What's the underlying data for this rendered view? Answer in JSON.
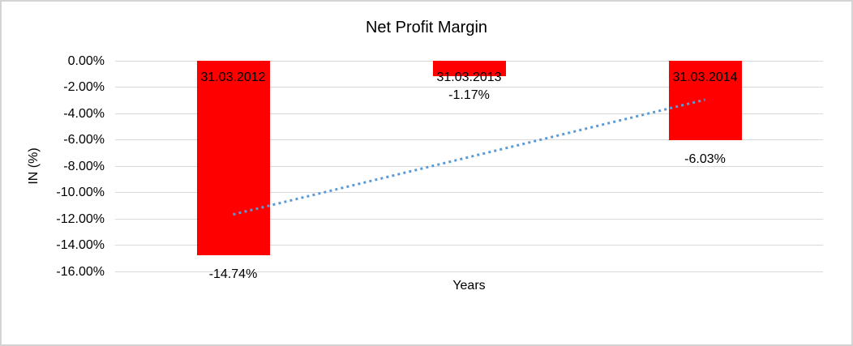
{
  "chart_data": {
    "type": "bar",
    "title": "Net Profit Margin",
    "xlabel": "Years",
    "ylabel": "IN (%)",
    "categories": [
      "31.03.2012",
      "31.03.2013",
      "31.03.2014"
    ],
    "values": [
      -14.74,
      -1.17,
      -6.03
    ],
    "value_labels": [
      "-14.74%",
      "-1.17%",
      "-6.03%"
    ],
    "y_ticks": [
      "0.00%",
      "-2.00%",
      "-4.00%",
      "-6.00%",
      "-8.00%",
      "-10.00%",
      "-12.00%",
      "-14.00%",
      "-16.00%"
    ],
    "y_tick_values": [
      0,
      -2,
      -4,
      -6,
      -8,
      -10,
      -12,
      -14,
      -16
    ],
    "ylim": [
      -16,
      0
    ],
    "grid": true,
    "legend_position": "none",
    "bar_color": "#ff0000",
    "grid_color": "#d9d9d9",
    "text_color": "#000000",
    "trendline": {
      "style": "dotted",
      "color": "#5b9bd5",
      "start_value": -11.67,
      "end_value": -2.96
    }
  }
}
